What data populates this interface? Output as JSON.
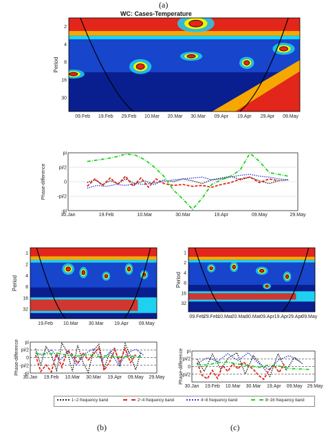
{
  "labels": {
    "a": "(a)",
    "b": "(b)",
    "c": "(c)"
  },
  "colors": {
    "dark_red": "#8a0000",
    "red": "#e3261b",
    "orange": "#f6a800",
    "yellow": "#f2f200",
    "cyan": "#1fd0f0",
    "blue": "#1a4cd6",
    "dark_blue": "#0a1f8f",
    "navy": "#06125a"
  },
  "legend": {
    "items": [
      {
        "label": "1~2 frequency band",
        "color": "#222222",
        "style": "dotted"
      },
      {
        "label": "2~4 frequency band",
        "color": "#e3261b",
        "style": "dashed"
      },
      {
        "label": "4~8 frequency band",
        "color": "#2e3fd8",
        "style": "dotted"
      },
      {
        "label": "8~16 frequency band",
        "color": "#1fd01f",
        "style": "dashdot"
      }
    ]
  },
  "chart_data": [
    {
      "id": "a-coherence",
      "type": "heatmap",
      "title": "WC: Cases-Temperature",
      "ylabel": "Period",
      "y_ticks": [
        "2",
        "4",
        "8",
        "16",
        "30"
      ],
      "x_ticks": [
        "09.Feb",
        "19.Feb",
        "29.Feb",
        "10.Mar",
        "20.Mar",
        "30.Mar",
        "09.Apr",
        "19.Apr",
        "29.Apr",
        "09.May"
      ],
      "colormap": "jet"
    },
    {
      "id": "a-phase",
      "type": "line",
      "ylabel": "Phase-difference",
      "y_ticks": [
        "pi",
        "pi/2",
        "0",
        "-pi/2",
        "-pi"
      ],
      "yrange": [
        -3.14,
        3.14
      ],
      "x_ticks": [
        "30.Jan",
        "19.Feb",
        "10.Mar",
        "30.Mar",
        "19.Apr",
        "09.May",
        "29.May"
      ],
      "xrange": [
        0,
        120
      ],
      "series": [
        {
          "name": "1~2 frequency band",
          "x": [
            10,
            14,
            18,
            22,
            26,
            30,
            35,
            40,
            45,
            50,
            55,
            60,
            65,
            70,
            75,
            80,
            85,
            90,
            95,
            100,
            105,
            110,
            115
          ],
          "y": [
            -0.1,
            0.2,
            -0.3,
            0.1,
            -0.2,
            0.3,
            -0.2,
            0.1,
            -0.3,
            0.2,
            0.0,
            0.3,
            0.1,
            -0.2,
            0.2,
            0.4,
            0.6,
            0.2,
            0.5,
            0.1,
            -0.2,
            0.1,
            0.2
          ]
        },
        {
          "name": "2~4 frequency band",
          "x": [
            10,
            14,
            18,
            22,
            26,
            30,
            34,
            38,
            42,
            46,
            50,
            55,
            60,
            65,
            70,
            75,
            80,
            85,
            90,
            95,
            100,
            105,
            110
          ],
          "y": [
            -0.5,
            0.3,
            -0.4,
            0.4,
            -0.3,
            0.6,
            -0.5,
            0.4,
            -0.6,
            0.3,
            -0.2,
            -0.4,
            -0.3,
            -0.5,
            -0.4,
            -0.6,
            -0.3,
            -0.1,
            0.3,
            0.5,
            -0.1,
            0.3,
            0.1
          ]
        },
        {
          "name": "4~8 frequency band",
          "x": [
            10,
            15,
            20,
            25,
            30,
            35,
            40,
            45,
            50,
            55,
            60,
            65,
            70,
            75,
            80,
            85,
            90,
            95,
            100,
            105,
            110,
            115
          ],
          "y": [
            -0.7,
            -0.4,
            -0.5,
            -0.3,
            -0.4,
            -0.2,
            -0.3,
            -0.1,
            0.0,
            0.2,
            0.3,
            0.4,
            0.5,
            0.2,
            0.3,
            0.5,
            0.7,
            0.8,
            0.6,
            0.5,
            0.3,
            0.2
          ]
        },
        {
          "name": "8~16 frequency band",
          "x": [
            10,
            15,
            20,
            25,
            30,
            35,
            40,
            45,
            50,
            55,
            60,
            65,
            70,
            75,
            80,
            85,
            90,
            95,
            100,
            105,
            110,
            115
          ],
          "y": [
            2.2,
            2.35,
            2.5,
            2.7,
            3.0,
            2.9,
            2.4,
            1.6,
            0.6,
            -0.9,
            -1.9,
            -3.0,
            -1.8,
            -0.3,
            0.2,
            0.6,
            1.3,
            3.1,
            2.2,
            1.0,
            0.8,
            0.6
          ]
        }
      ]
    },
    {
      "id": "b-coherence",
      "type": "heatmap",
      "ylabel": "Period",
      "y_ticks": [
        "1",
        "2",
        "4",
        "8",
        "16",
        "32"
      ],
      "x_ticks": [
        "19.Feb",
        "10.Mar",
        "30.Mar",
        "19.Apr",
        "09.May"
      ],
      "colormap": "jet"
    },
    {
      "id": "b-phase",
      "type": "line",
      "ylabel": "Phase-difference",
      "y_ticks": [
        "pi",
        "pi/2",
        "0",
        "-pi/2",
        "-pi"
      ],
      "yrange": [
        -3.14,
        3.14
      ],
      "x_ticks": [
        "30.Jan",
        "19.Feb",
        "10.Mar",
        "30.Mar",
        "19.Apr",
        "09.May",
        "29.May"
      ],
      "xrange": [
        0,
        120
      ],
      "series": [
        {
          "name": "1~2 frequency band",
          "x": [
            5,
            10,
            15,
            20,
            25,
            30,
            35,
            40,
            45,
            50,
            55,
            60,
            65,
            70,
            75,
            80,
            85,
            90,
            95,
            100,
            105
          ],
          "y": [
            1.8,
            -1.5,
            2.2,
            0.5,
            -2.6,
            2.9,
            1.2,
            -2.8,
            2.5,
            -1.0,
            -3.0,
            1.5,
            2.7,
            -2.2,
            0.8,
            2.0,
            -1.8,
            2.8,
            0.3,
            -2.5,
            1.2
          ]
        },
        {
          "name": "2~4 frequency band",
          "x": [
            5,
            10,
            15,
            20,
            25,
            30,
            35,
            40,
            45,
            50,
            55,
            60,
            65,
            70,
            75,
            80,
            85,
            90,
            95,
            100
          ],
          "y": [
            0.5,
            -2.8,
            -1.5,
            -2.9,
            0.8,
            -2.0,
            1.5,
            0.6,
            -1.2,
            1.0,
            -0.5,
            0.7,
            2.0,
            -2.6,
            -1.0,
            1.5,
            -0.8,
            1.8,
            -1.0,
            0.6
          ]
        },
        {
          "name": "4~8 frequency band",
          "x": [
            5,
            12,
            20,
            28,
            36,
            44,
            52,
            60,
            68,
            76,
            84,
            92,
            100,
            108
          ],
          "y": [
            1.0,
            0.4,
            1.6,
            -0.6,
            1.2,
            -1.5,
            0.8,
            1.8,
            -0.5,
            1.2,
            -1.6,
            0.9,
            1.7,
            0.4
          ]
        },
        {
          "name": "8~16 frequency band",
          "x": [
            5,
            15,
            25,
            35,
            45,
            55,
            65,
            75,
            85,
            95,
            105
          ],
          "y": [
            0.8,
            0.7,
            0.9,
            0.5,
            0.3,
            0.6,
            0.2,
            0.4,
            0.1,
            0.3,
            0.2
          ]
        }
      ]
    },
    {
      "id": "c-coherence",
      "type": "heatmap",
      "ylabel": "Period",
      "y_ticks": [
        "1",
        "2",
        "4",
        "8",
        "16",
        "32"
      ],
      "x_ticks": [
        "09.Feb",
        "29.Feb",
        "10.Mar",
        "20.Mar",
        "30.Mar",
        "09.Apr",
        "19.Apr",
        "29.Apr",
        "09.May"
      ],
      "colormap": "jet"
    },
    {
      "id": "c-phase",
      "type": "line",
      "ylabel": "Phase-difference",
      "y_ticks": [
        "pi",
        "pi/2",
        "0",
        "-pi/2"
      ],
      "yrange": [
        -3.14,
        3.14
      ],
      "x_ticks": [
        "30.Jan",
        "19.Feb",
        "10.Mar",
        "30.Mar",
        "19.Apr",
        "09.May",
        "29.May"
      ],
      "xrange": [
        0,
        120
      ],
      "series": [
        {
          "name": "1~2 frequency band",
          "x": [
            5,
            12,
            20,
            28,
            36,
            44,
            52,
            60,
            68,
            76,
            84,
            92,
            100,
            108
          ],
          "y": [
            1.5,
            -1.0,
            2.5,
            -0.5,
            1.8,
            2.8,
            -1.5,
            2.2,
            0.3,
            -2.0,
            2.6,
            -0.8,
            1.9,
            0.5
          ]
        },
        {
          "name": "2~4 frequency band",
          "x": [
            5,
            10,
            15,
            20,
            25,
            30,
            35,
            40,
            45,
            50,
            55,
            60,
            65,
            70,
            75,
            80,
            85,
            90
          ],
          "y": [
            0.8,
            -1.8,
            -2.5,
            -0.8,
            -2.4,
            0.2,
            -1.0,
            0.6,
            -0.5,
            0.9,
            0.2,
            -0.6,
            -1.8,
            -2.6,
            -0.8,
            0.3,
            -1.2,
            0.5
          ]
        },
        {
          "name": "4~8 frequency band",
          "x": [
            5,
            15,
            25,
            35,
            45,
            55,
            65,
            75,
            85,
            95,
            105
          ],
          "y": [
            0.6,
            1.8,
            1.0,
            2.6,
            1.2,
            2.8,
            0.6,
            -0.6,
            1.4,
            2.2,
            1.0
          ]
        },
        {
          "name": "8~16 frequency band",
          "x": [
            5,
            15,
            25,
            35,
            45,
            55,
            65,
            75,
            85,
            95,
            105,
            115
          ],
          "y": [
            0.4,
            0.3,
            0.8,
            0.9,
            0.5,
            0.2,
            -0.2,
            0.3,
            0.1,
            -0.4,
            -0.5,
            -0.6
          ]
        }
      ]
    }
  ]
}
